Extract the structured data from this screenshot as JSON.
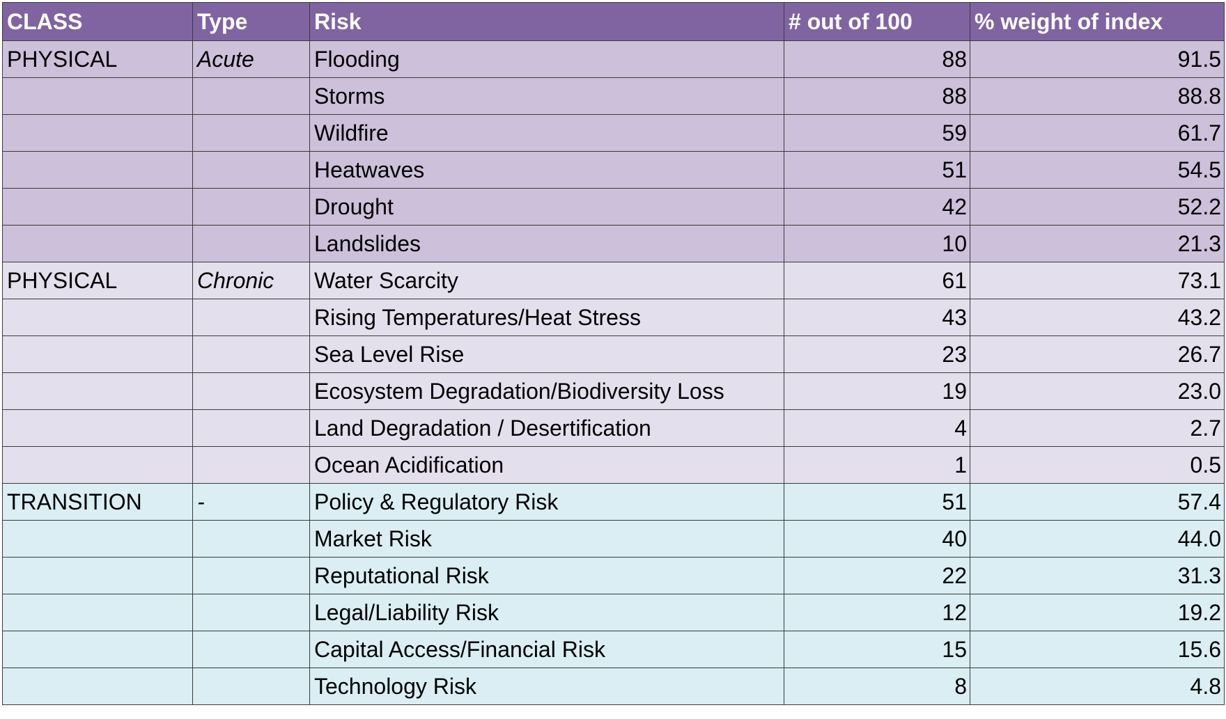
{
  "header": {
    "columns": [
      "CLASS",
      "Type",
      "Risk",
      "# out of 100",
      "% weight of index"
    ],
    "color": "#8064a2"
  },
  "groups": [
    {
      "class": "PHYSICAL",
      "type": "Acute",
      "color": "#ccc0da",
      "rows": [
        {
          "risk": "Flooding",
          "score": "88",
          "weight": "91.5"
        },
        {
          "risk": "Storms",
          "score": "88",
          "weight": "88.8"
        },
        {
          "risk": "Wildfire",
          "score": "59",
          "weight": "61.7"
        },
        {
          "risk": "Heatwaves",
          "score": "51",
          "weight": "54.5"
        },
        {
          "risk": "Drought",
          "score": "42",
          "weight": "52.2"
        },
        {
          "risk": "Landslides",
          "score": "10",
          "weight": "21.3"
        }
      ]
    },
    {
      "class": "PHYSICAL",
      "type": "Chronic",
      "color": "#e4dfec",
      "rows": [
        {
          "risk": "Water Scarcity",
          "score": "61",
          "weight": "73.1"
        },
        {
          "risk": "Rising Temperatures/Heat Stress",
          "score": "43",
          "weight": "43.2"
        },
        {
          "risk": "Sea Level Rise",
          "score": "23",
          "weight": "26.7"
        },
        {
          "risk": "Ecosystem Degradation/Biodiversity Loss",
          "score": "19",
          "weight": "23.0"
        },
        {
          "risk": "Land Degradation / Desertification",
          "score": "4",
          "weight": "2.7"
        },
        {
          "risk": "Ocean Acidification",
          "score": "1",
          "weight": "0.5"
        }
      ]
    },
    {
      "class": "TRANSITION",
      "type": "-",
      "color": "#daeef3",
      "rows": [
        {
          "risk": "Policy & Regulatory Risk",
          "score": "51",
          "weight": "57.4"
        },
        {
          "risk": "Market Risk",
          "score": "40",
          "weight": "44.0"
        },
        {
          "risk": "Reputational Risk",
          "score": "22",
          "weight": "31.3"
        },
        {
          "risk": "Legal/Liability Risk",
          "score": "12",
          "weight": "19.2"
        },
        {
          "risk": "Capital Access/Financial Risk",
          "score": "15",
          "weight": "15.6"
        },
        {
          "risk": "Technology Risk",
          "score": "8",
          "weight": "4.8"
        }
      ]
    }
  ]
}
